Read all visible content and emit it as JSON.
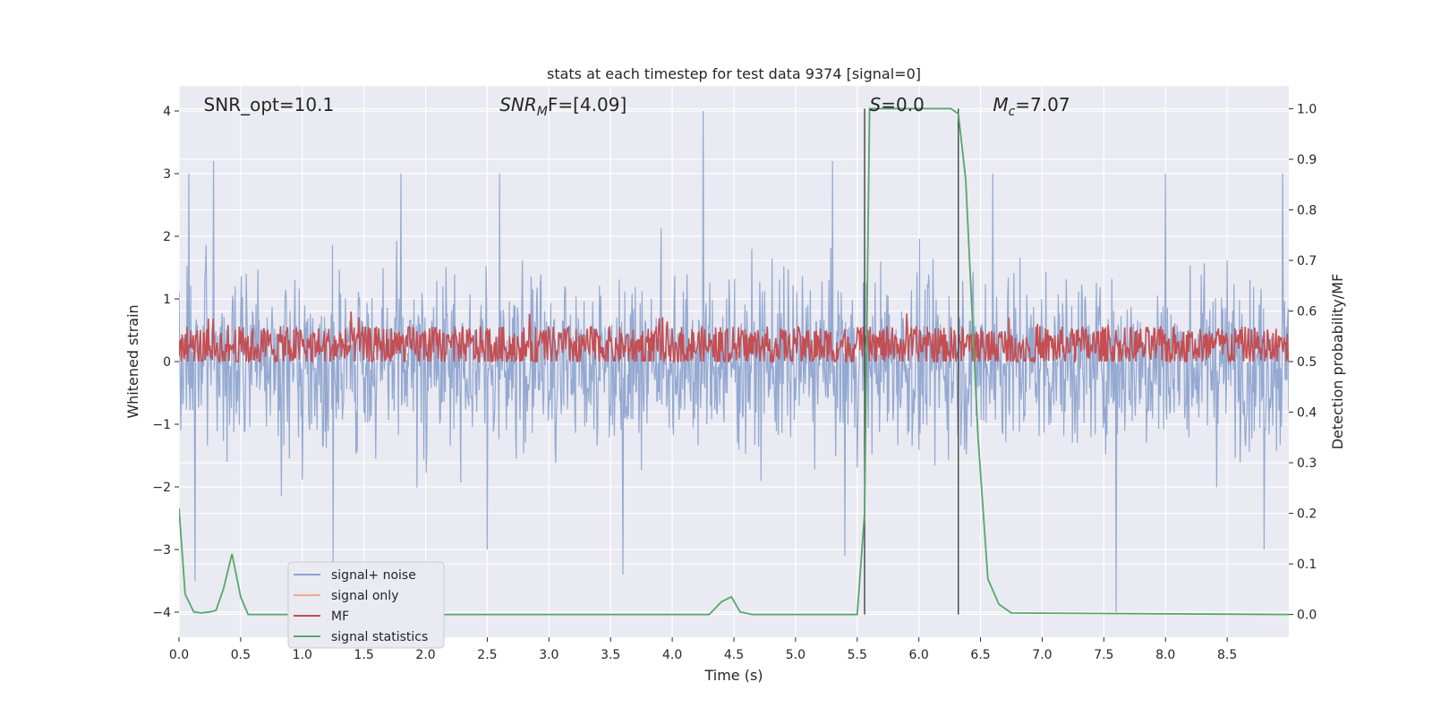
{
  "chart_data": {
    "type": "line",
    "title": "stats at each timestep for test data 9374 [signal=0]",
    "xlabel": "Time (s)",
    "ylabel_left": "Whitened strain",
    "ylabel_right": "Detection probability/MF",
    "xlim": [
      0.0,
      9.0
    ],
    "ylim_left": [
      -4.4,
      4.4
    ],
    "ylim_right": [
      -0.045,
      1.045
    ],
    "grid": true,
    "x_ticks": [
      0.0,
      0.5,
      1.0,
      1.5,
      2.0,
      2.5,
      3.0,
      3.5,
      4.0,
      4.5,
      5.0,
      5.5,
      6.0,
      6.5,
      7.0,
      7.5,
      8.0,
      8.5
    ],
    "x_tick_labels": [
      "0.0",
      "0.5",
      "1.0",
      "1.5",
      "2.0",
      "2.5",
      "3.0",
      "3.5",
      "4.0",
      "4.5",
      "5.0",
      "5.5",
      "6.0",
      "6.5",
      "7.0",
      "7.5",
      "8.0",
      "8.5"
    ],
    "y_left_ticks": [
      4,
      3,
      2,
      1,
      0,
      -1,
      -2,
      -3,
      -4
    ],
    "y_left_tick_labels": [
      "4",
      "3",
      "2",
      "1",
      "0",
      "−1",
      "−2",
      "−3",
      "−4"
    ],
    "y_right_ticks": [
      1.0,
      0.9,
      0.8,
      0.7,
      0.6,
      0.5,
      0.4,
      0.3,
      0.2,
      0.1,
      0.0
    ],
    "y_right_tick_labels": [
      "1.0",
      "0.9",
      "0.8",
      "0.7",
      "0.6",
      "0.5",
      "0.4",
      "0.3",
      "0.2",
      "0.1",
      "0.0"
    ],
    "annotations": [
      {
        "id": "snr_opt",
        "text": "SNR_opt=10.1",
        "x": 0.2,
        "y": 4.1
      },
      {
        "id": "snr_mf",
        "text": "SNR_MF=[4.09]",
        "base": "SNR",
        "sub": "M",
        "tail": "F=[4.09]",
        "x": 2.6,
        "y": 4.1
      },
      {
        "id": "s",
        "text": "S=0.0",
        "base": "S",
        "tail": "=0.0",
        "x": 5.6,
        "y": 4.1
      },
      {
        "id": "mc",
        "text": "Mc=7.07",
        "base": "M",
        "sub": "c",
        "tail": "=7.07",
        "x": 6.6,
        "y": 4.1
      }
    ],
    "vertical_lines": [
      5.56,
      6.32
    ],
    "series": [
      {
        "name": "signal+ noise",
        "axis": "left",
        "color": "#8fa5cf",
        "description": "whitened noisy strain, amplitude about 1.5 sigma, peaks near 4",
        "noise_amplitude": 1.2,
        "peaks": [
          {
            "x": 0.08,
            "y": 3.0
          },
          {
            "x": 0.28,
            "y": 3.2
          },
          {
            "x": 1.8,
            "y": 3.0
          },
          {
            "x": 2.6,
            "y": 3.0
          },
          {
            "x": 4.25,
            "y": 4.0
          },
          {
            "x": 5.3,
            "y": 3.2
          },
          {
            "x": 6.6,
            "y": 3.0
          },
          {
            "x": 8.0,
            "y": 3.0
          },
          {
            "x": 8.95,
            "y": 3.0
          },
          {
            "x": 0.13,
            "y": -3.5
          },
          {
            "x": 1.25,
            "y": -3.3
          },
          {
            "x": 2.5,
            "y": -3.0
          },
          {
            "x": 3.6,
            "y": -3.4
          },
          {
            "x": 5.4,
            "y": -3.1
          },
          {
            "x": 7.6,
            "y": -4.0
          },
          {
            "x": 8.8,
            "y": -3.0
          }
        ]
      },
      {
        "name": "signal only",
        "axis": "left",
        "color": "#ecaa8c",
        "values": []
      },
      {
        "name": "MF",
        "axis": "right",
        "color": "#c44e52",
        "description": "matched filter output fluctuating between about 0.5 and 0.6",
        "level": 0.53,
        "spread": 0.04
      },
      {
        "name": "signal statistics",
        "axis": "right",
        "color": "#55a868",
        "x": [
          0.0,
          0.05,
          0.12,
          0.18,
          0.25,
          0.3,
          0.36,
          0.43,
          0.5,
          0.56,
          0.65,
          4.3,
          4.4,
          4.48,
          4.55,
          4.65,
          5.5,
          5.56,
          5.6,
          5.65,
          6.26,
          6.32,
          6.38,
          6.48,
          6.56,
          6.65,
          6.75,
          9.0
        ],
        "y": [
          0.21,
          0.04,
          0.005,
          0.003,
          0.005,
          0.008,
          0.05,
          0.12,
          0.035,
          0.0,
          0.0,
          0.0,
          0.025,
          0.035,
          0.005,
          0.0,
          0.0,
          0.2,
          1.0,
          1.0,
          1.0,
          0.99,
          0.86,
          0.35,
          0.07,
          0.02,
          0.003,
          0.0
        ]
      }
    ],
    "legend": {
      "position": "lower-left",
      "entries": [
        {
          "label": "signal+ noise",
          "color": "#8fa5cf"
        },
        {
          "label": "signal only",
          "color": "#ecaa8c"
        },
        {
          "label": "MF",
          "color": "#c44e52"
        },
        {
          "label": "signal statistics",
          "color": "#55a868"
        }
      ]
    }
  }
}
